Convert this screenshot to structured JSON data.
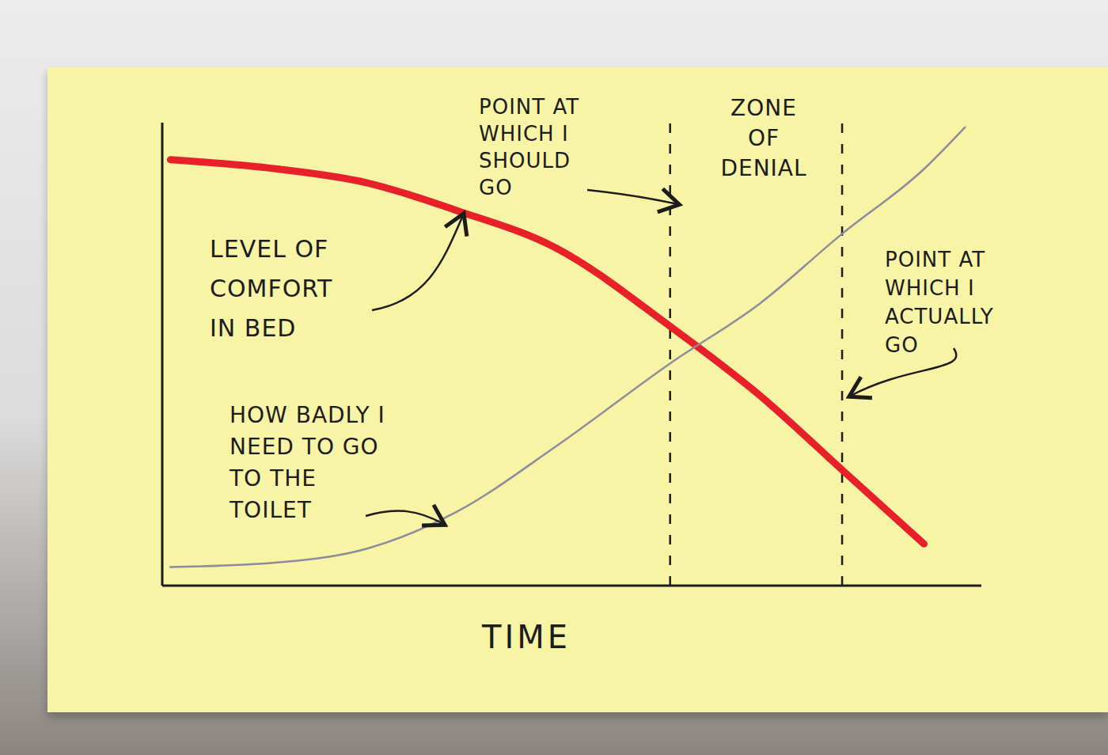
{
  "chart_data": {
    "type": "line",
    "x_label": "TIME",
    "x": [
      1,
      14,
      25,
      36,
      48,
      62,
      73,
      83,
      93,
      98
    ],
    "series": [
      {
        "name": "LEVEL OF\nCOMFORT\nIN BED",
        "color": "#e8202a",
        "values": [
          92,
          90,
          87,
          81,
          73,
          56,
          41,
          25,
          9,
          null
        ]
      },
      {
        "name": "HOW BADLY I\nNEED TO GO\nTO THE\nTOILET",
        "color": "#8c8c9c",
        "values": [
          4,
          5,
          8,
          16,
          30,
          48,
          61,
          76,
          90,
          99
        ]
      }
    ],
    "xlim": [
      0,
      100
    ],
    "ylim": [
      0,
      100
    ],
    "xticks": [],
    "yticks": [],
    "tick_labels": false,
    "grid": false,
    "vlines": [
      {
        "x": 62,
        "label": "POINT AT\nWHICH I\nSHOULD\nGO",
        "line_style": "dashed"
      },
      {
        "x": 83,
        "label": "POINT AT\nWHICH I\nACTUALLY\nGO",
        "line_style": "dashed"
      }
    ],
    "annotations": [
      "ZONE\nOF\nDENIAL"
    ]
  }
}
